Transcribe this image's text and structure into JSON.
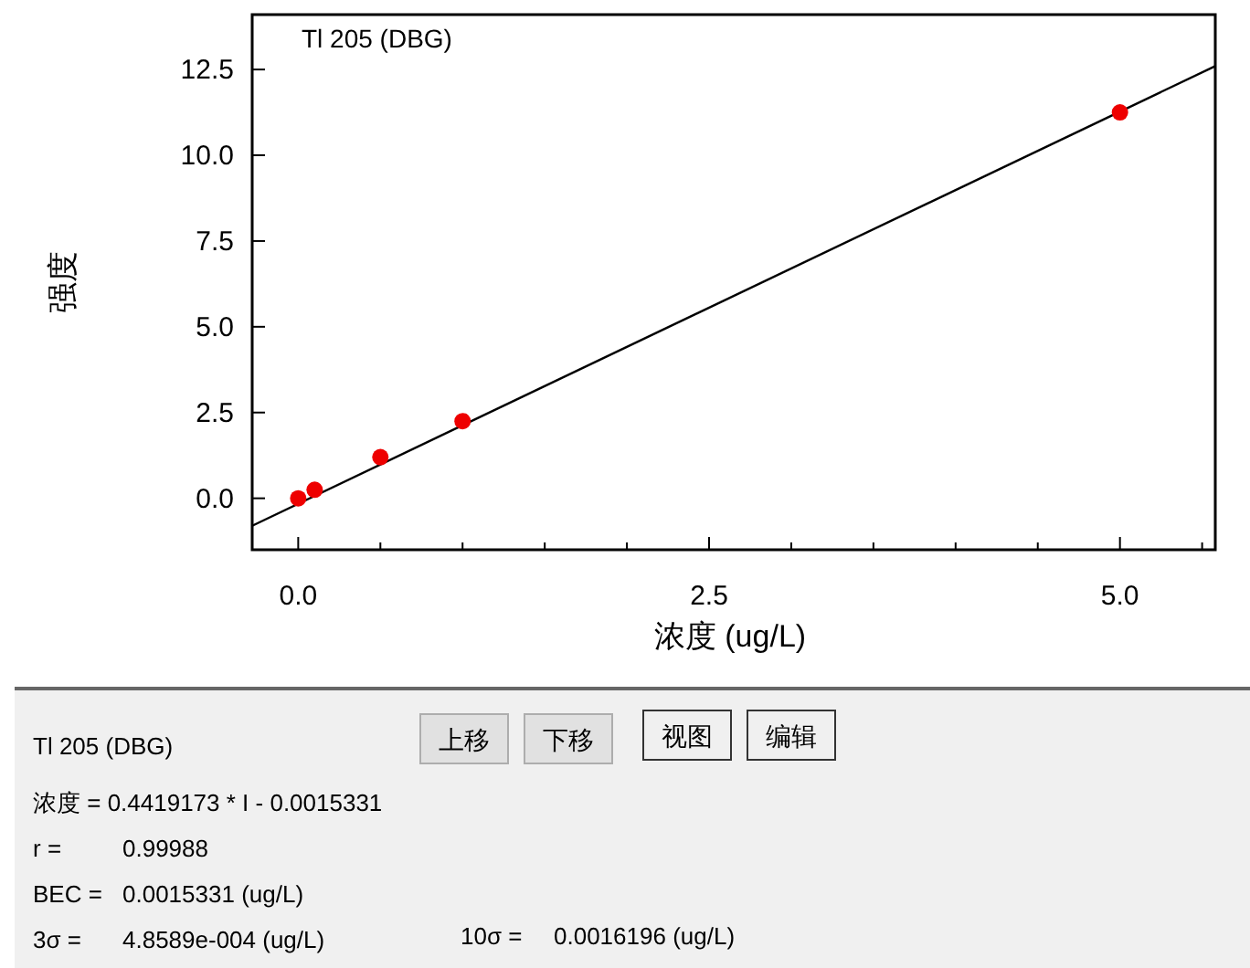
{
  "chart_data": [
    {
      "type": "scatter",
      "title": "Tl 205 (DBG)",
      "xlabel": "浓度 (ug/L)",
      "ylabel": "强度",
      "xlim": [
        -0.28,
        5.58
      ],
      "ylim": [
        -1.5,
        14.1
      ],
      "xticks": [
        {
          "value": 0,
          "label": "0.0"
        },
        {
          "value": 0.5,
          "label": null
        },
        {
          "value": 1,
          "label": null
        },
        {
          "value": 1.5,
          "label": null
        },
        {
          "value": 2,
          "label": null
        },
        {
          "value": 2.5,
          "label": "2.5"
        },
        {
          "value": 3,
          "label": null
        },
        {
          "value": 3.5,
          "label": null
        },
        {
          "value": 4,
          "label": null
        },
        {
          "value": 4.5,
          "label": null
        },
        {
          "value": 5,
          "label": "5.0"
        },
        {
          "value": 5.5,
          "label": null
        }
      ],
      "yticks": [
        {
          "value": 0,
          "label": "0.0"
        },
        {
          "value": 2.5,
          "label": "2.5"
        },
        {
          "value": 5,
          "label": "5.0"
        },
        {
          "value": 7.5,
          "label": "7.5"
        },
        {
          "value": 10,
          "label": "10.0"
        },
        {
          "value": 12.5,
          "label": "12.5"
        }
      ],
      "grid": false,
      "series": [
        {
          "type": "line",
          "color": "#000000",
          "x": [
            -0.28,
            5.58
          ],
          "values": [
            -0.8,
            12.6
          ]
        },
        {
          "type": "scatter",
          "marker": "circle",
          "color": "#ee0000",
          "x": [
            0,
            0.1,
            0.5,
            1,
            5
          ],
          "values": [
            0,
            0.25,
            1.2,
            2.25,
            11.25
          ]
        }
      ]
    },
    {
      "type": "other",
      "annotations": [
        "Tl 205 (DBG)",
        "上移",
        "下移",
        "视图",
        "编辑",
        "浓度 = 0.4419173 * I - 0.0015331",
        "r =",
        "0.99988",
        "BEC =",
        "0.0015331 (ug/L)",
        "3σ =",
        "4.8589e-004 (ug/L)",
        "10σ =",
        "0.0016196 (ug/L)"
      ]
    }
  ]
}
